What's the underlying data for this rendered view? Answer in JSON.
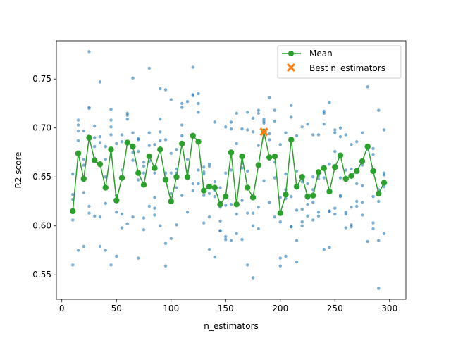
{
  "chart_data": {
    "type": "scatter",
    "xlabel": "n_estimators",
    "ylabel": "R2 score",
    "xlim": [
      -5,
      315
    ],
    "ylim": [
      0.525,
      0.789
    ],
    "xticks": [
      0,
      50,
      100,
      150,
      200,
      250,
      300
    ],
    "yticks": [
      0.55,
      0.6,
      0.65,
      0.7,
      0.75
    ],
    "grid": false,
    "legend_position": "upper-right",
    "scatter_color": "#1f77b4",
    "mean_color": "#2ca02c",
    "best_color": "#ff7f0e",
    "series": [
      {
        "name": "Mean",
        "kind": "line",
        "x": [
          10,
          15,
          20,
          25,
          30,
          35,
          40,
          45,
          50,
          55,
          60,
          65,
          70,
          75,
          80,
          85,
          90,
          95,
          100,
          105,
          110,
          115,
          120,
          125,
          130,
          135,
          140,
          145,
          150,
          155,
          160,
          165,
          170,
          175,
          180,
          185,
          190,
          195,
          200,
          205,
          210,
          215,
          220,
          225,
          230,
          235,
          240,
          245,
          250,
          255,
          260,
          265,
          270,
          275,
          280,
          285,
          290,
          295
        ],
        "y": [
          0.615,
          0.674,
          0.648,
          0.69,
          0.667,
          0.663,
          0.639,
          0.678,
          0.626,
          0.649,
          0.685,
          0.681,
          0.654,
          0.642,
          0.671,
          0.659,
          0.678,
          0.647,
          0.625,
          0.65,
          0.684,
          0.65,
          0.692,
          0.686,
          0.636,
          0.64,
          0.639,
          0.622,
          0.63,
          0.675,
          0.622,
          0.671,
          0.639,
          0.629,
          0.662,
          0.696,
          0.67,
          0.671,
          0.613,
          0.632,
          0.688,
          0.64,
          0.65,
          0.63,
          0.631,
          0.655,
          0.659,
          0.635,
          0.66,
          0.672,
          0.648,
          0.651,
          0.656,
          0.666,
          0.681,
          0.656,
          0.633,
          0.644
        ]
      },
      {
        "name": "Best n_estimators",
        "kind": "marker",
        "x": [
          185
        ],
        "y": [
          0.696
        ]
      }
    ],
    "samples": {
      "x": [
        10,
        10,
        10,
        10,
        10,
        15,
        15,
        15,
        15,
        15,
        20,
        20,
        20,
        20,
        20,
        25,
        25,
        25,
        25,
        25,
        30,
        30,
        30,
        30,
        30,
        35,
        35,
        35,
        35,
        35,
        40,
        40,
        40,
        40,
        40,
        45,
        45,
        45,
        45,
        45,
        50,
        50,
        50,
        50,
        50,
        55,
        55,
        55,
        55,
        55,
        60,
        60,
        60,
        60,
        60,
        65,
        65,
        65,
        65,
        65,
        70,
        70,
        70,
        70,
        70,
        75,
        75,
        75,
        75,
        75,
        80,
        80,
        80,
        80,
        80,
        85,
        85,
        85,
        85,
        85,
        90,
        90,
        90,
        90,
        90,
        95,
        95,
        95,
        95,
        95,
        100,
        100,
        100,
        100,
        100,
        105,
        105,
        105,
        105,
        105,
        110,
        110,
        110,
        110,
        110,
        115,
        115,
        115,
        115,
        115,
        120,
        120,
        120,
        120,
        120,
        125,
        125,
        125,
        125,
        125,
        130,
        130,
        130,
        130,
        130,
        135,
        135,
        135,
        135,
        135,
        140,
        140,
        140,
        140,
        140,
        145,
        145,
        145,
        145,
        145,
        150,
        150,
        150,
        150,
        150,
        155,
        155,
        155,
        155,
        155,
        160,
        160,
        160,
        160,
        160,
        165,
        165,
        165,
        165,
        165,
        170,
        170,
        170,
        170,
        170,
        175,
        175,
        175,
        175,
        175,
        180,
        180,
        180,
        180,
        180,
        185,
        185,
        185,
        185,
        185,
        190,
        190,
        190,
        190,
        190,
        195,
        195,
        195,
        195,
        195,
        200,
        200,
        200,
        200,
        200,
        205,
        205,
        205,
        205,
        205,
        210,
        210,
        210,
        210,
        210,
        215,
        215,
        215,
        215,
        215,
        220,
        220,
        220,
        220,
        220,
        225,
        225,
        225,
        225,
        225,
        230,
        230,
        230,
        230,
        230,
        235,
        235,
        235,
        235,
        235,
        240,
        240,
        240,
        240,
        240,
        245,
        245,
        245,
        245,
        245,
        250,
        250,
        250,
        250,
        250,
        255,
        255,
        255,
        255,
        255,
        260,
        260,
        260,
        260,
        260,
        265,
        265,
        265,
        265,
        265,
        270,
        270,
        270,
        270,
        270,
        275,
        275,
        275,
        275,
        275,
        280,
        280,
        280,
        280,
        280,
        285,
        285,
        285,
        285,
        285,
        290,
        290,
        290,
        290,
        290,
        295,
        295,
        295,
        295,
        295
      ],
      "y": [
        0.56,
        0.606,
        0.627,
        0.653,
        0.632,
        0.575,
        0.708,
        0.687,
        0.703,
        0.697,
        0.579,
        0.697,
        0.662,
        0.668,
        0.634,
        0.778,
        0.72,
        0.721,
        0.613,
        0.62,
        0.61,
        0.702,
        0.669,
        0.681,
        0.69,
        0.579,
        0.747,
        0.609,
        0.685,
        0.691,
        0.575,
        0.668,
        0.681,
        0.623,
        0.65,
        0.56,
        0.719,
        0.708,
        0.701,
        0.693,
        0.569,
        0.631,
        0.614,
        0.684,
        0.631,
        0.598,
        0.693,
        0.612,
        0.657,
        0.686,
        0.602,
        0.713,
        0.709,
        0.684,
        0.715,
        0.609,
        0.751,
        0.695,
        0.667,
        0.675,
        0.567,
        0.689,
        0.647,
        0.688,
        0.676,
        0.596,
        0.654,
        0.665,
        0.608,
        0.661,
        0.62,
        0.761,
        0.695,
        0.682,
        0.666,
        0.611,
        0.683,
        0.654,
        0.629,
        0.618,
        0.6,
        0.74,
        0.696,
        0.709,
        0.687,
        0.559,
        0.739,
        0.688,
        0.654,
        0.582,
        0.587,
        0.729,
        0.633,
        0.654,
        0.674,
        0.601,
        0.678,
        0.654,
        0.639,
        0.658,
        0.631,
        0.725,
        0.721,
        0.703,
        0.692,
        0.668,
        0.727,
        0.656,
        0.648,
        0.614,
        0.643,
        0.762,
        0.734,
        0.636,
        0.733,
        0.643,
        0.735,
        0.725,
        0.716,
        0.657,
        0.653,
        0.603,
        0.66,
        0.655,
        0.631,
        0.576,
        0.661,
        0.663,
        0.633,
        0.609,
        0.568,
        0.706,
        0.636,
        0.645,
        0.63,
        0.595,
        0.639,
        0.605,
        0.619,
        0.595,
        0.589,
        0.701,
        0.621,
        0.654,
        0.586,
        0.622,
        0.706,
        0.699,
        0.657,
        0.585,
        0.592,
        0.715,
        0.684,
        0.612,
        0.623,
        0.586,
        0.699,
        0.664,
        0.626,
        0.659,
        0.56,
        0.716,
        0.698,
        0.613,
        0.656,
        0.6,
        0.696,
        0.613,
        0.547,
        0.71,
        0.597,
        0.718,
        0.682,
        0.715,
        0.619,
        0.646,
        0.709,
        0.705,
        0.698,
        0.707,
        0.731,
        0.694,
        0.624,
        0.668,
        0.688,
        0.649,
        0.718,
        0.665,
        0.707,
        0.609,
        0.559,
        0.683,
        0.629,
        0.604,
        0.567,
        0.569,
        0.653,
        0.628,
        0.695,
        0.637,
        0.723,
        0.711,
        0.599,
        0.63,
        0.599,
        0.563,
        0.692,
        0.616,
        0.656,
        0.585,
        0.6,
        0.701,
        0.617,
        0.645,
        0.604,
        0.628,
        0.704,
        0.643,
        0.622,
        0.61,
        0.624,
        0.693,
        0.606,
        0.65,
        0.637,
        0.61,
        0.693,
        0.651,
        0.648,
        0.614,
        0.576,
        0.717,
        0.715,
        0.704,
        0.649,
        0.615,
        0.726,
        0.663,
        0.615,
        0.578,
        0.618,
        0.695,
        0.698,
        0.676,
        0.612,
        0.63,
        0.7,
        0.691,
        0.631,
        0.649,
        0.598,
        0.693,
        0.612,
        0.614,
        0.657,
        0.599,
        0.683,
        0.658,
        0.619,
        0.601,
        0.643,
        0.686,
        0.655,
        0.625,
        0.62,
        0.641,
        0.695,
        0.611,
        0.662,
        0.624,
        0.584,
        0.742,
        0.678,
        0.681,
        0.681,
        0.603,
        0.679,
        0.673,
        0.63,
        0.597,
        0.536,
        0.718,
        0.585,
        0.637,
        0.625,
        0.592,
        0.698,
        0.64,
        0.654,
        0.652
      ]
    }
  }
}
